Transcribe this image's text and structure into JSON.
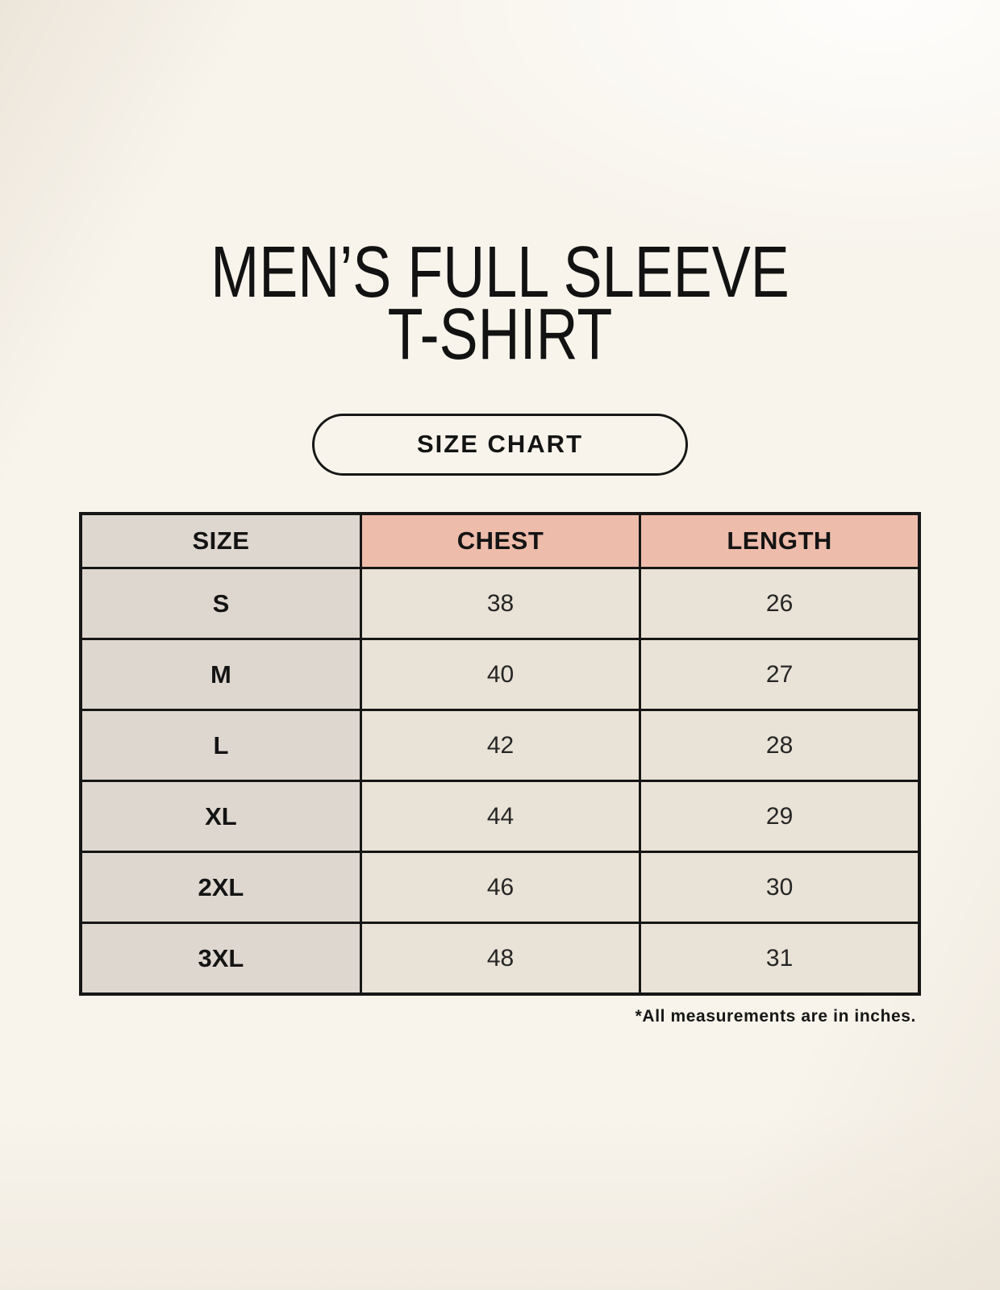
{
  "page": {
    "title_line1": "MEN’S FULL SLEEVE",
    "title_line2": "T-SHIRT",
    "size_chart_button_label": "SIZE CHART",
    "footnote": "*All measurements are in inches."
  },
  "colors": {
    "background": "#f8f4ec",
    "size_column_bg": "#ded7d0",
    "measure_header_bg": "#eebcab",
    "data_cell_bg": "#e9e2d6",
    "border": "#161616",
    "text": "#141414"
  },
  "table": {
    "headers": [
      "SIZE",
      "CHEST",
      "LENGTH"
    ],
    "rows": [
      {
        "size": "S",
        "chest": "38",
        "length": "26"
      },
      {
        "size": "M",
        "chest": "40",
        "length": "27"
      },
      {
        "size": "L",
        "chest": "42",
        "length": "28"
      },
      {
        "size": "XL",
        "chest": "44",
        "length": "29"
      },
      {
        "size": "2XL",
        "chest": "46",
        "length": "30"
      },
      {
        "size": "3XL",
        "chest": "48",
        "length": "31"
      }
    ]
  },
  "chart_data": {
    "type": "table",
    "title": "MEN’S FULL SLEEVE T-SHIRT — SIZE CHART",
    "columns": [
      "SIZE",
      "CHEST",
      "LENGTH"
    ],
    "rows": [
      [
        "S",
        38,
        26
      ],
      [
        "M",
        40,
        27
      ],
      [
        "L",
        42,
        28
      ],
      [
        "XL",
        44,
        29
      ],
      [
        "2XL",
        46,
        30
      ],
      [
        "3XL",
        48,
        31
      ]
    ],
    "units": "inches",
    "notes": "*All measurements are in inches."
  }
}
